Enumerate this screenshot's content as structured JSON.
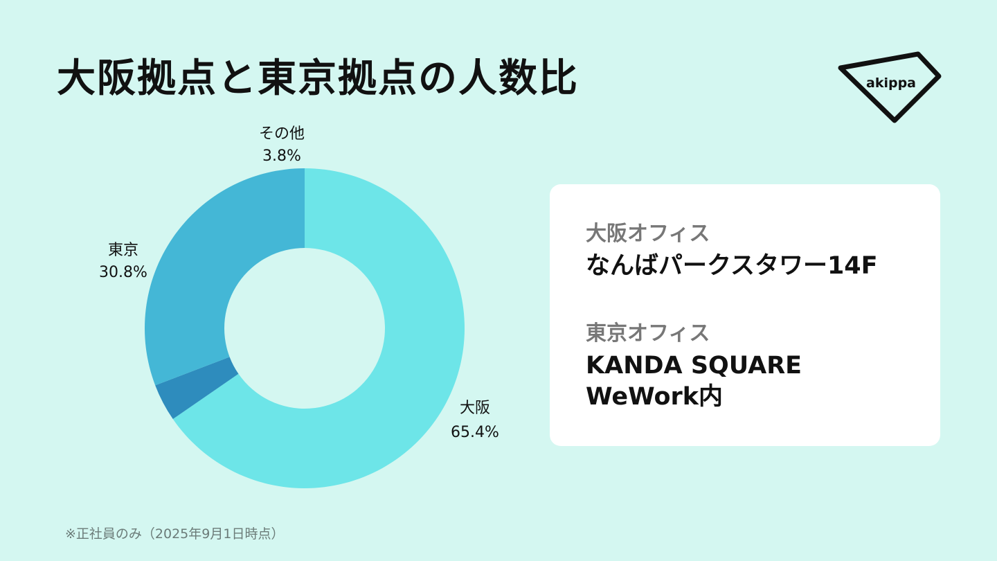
{
  "title": "大阪拠点と東京拠点の人数比",
  "logo": {
    "text": "akippa"
  },
  "chart_data": {
    "type": "pie",
    "donut": true,
    "slices": [
      {
        "label": "大阪",
        "value": 65.4,
        "value_label": "65.4%",
        "color": "#6de5e8"
      },
      {
        "label": "その他",
        "value": 3.8,
        "value_label": "3.8%",
        "color": "#2e8cbd"
      },
      {
        "label": "東京",
        "value": 30.8,
        "value_label": "30.8%",
        "color": "#44b7d6"
      }
    ]
  },
  "offices": [
    {
      "name": "大阪オフィス",
      "place": "なんばパークスタワー14F"
    },
    {
      "name": "東京オフィス",
      "place": "KANDA SQUARE\nWeWork内"
    }
  ],
  "footnote": "※正社員のみ（2025年9月1日時点）"
}
